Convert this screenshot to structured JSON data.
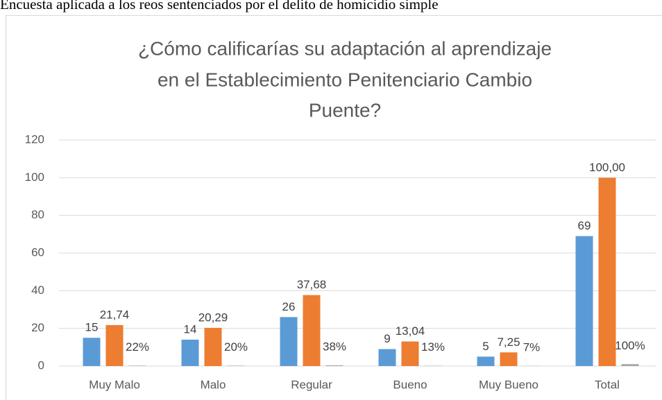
{
  "caption": "Encuesta aplicada a los reos sentenciados por el delito de homicidio simple",
  "chart_data": {
    "type": "bar",
    "title": [
      "¿Cómo calificarías su adaptación al aprendizaje",
      "en el Establecimiento Penitenciario Cambio",
      "Puente?"
    ],
    "categories": [
      "Muy Malo",
      "Malo",
      "Regular",
      "Bueno",
      "Muy Bueno",
      "Total"
    ],
    "series": [
      {
        "color": "#5b9bd5",
        "values": [
          15,
          14,
          26,
          9,
          5,
          69
        ]
      },
      {
        "color": "#ed7d31",
        "values": [
          21.74,
          20.29,
          37.68,
          13.04,
          7.25,
          100
        ],
        "value_labels": [
          "21,74",
          "20,29",
          "37,68",
          "13,04",
          "7,25",
          "100,00"
        ]
      },
      {
        "color": "#a5a5a5",
        "values": [
          0.22,
          0.2,
          0.38,
          0.13,
          0.07,
          1
        ],
        "value_labels": [
          "22%",
          "20%",
          "38%",
          "13%",
          "7%",
          "100%"
        ]
      }
    ],
    "ylim": [
      0,
      120
    ],
    "yticks": [
      0,
      20,
      40,
      60,
      80,
      100,
      120
    ],
    "grid": true
  }
}
